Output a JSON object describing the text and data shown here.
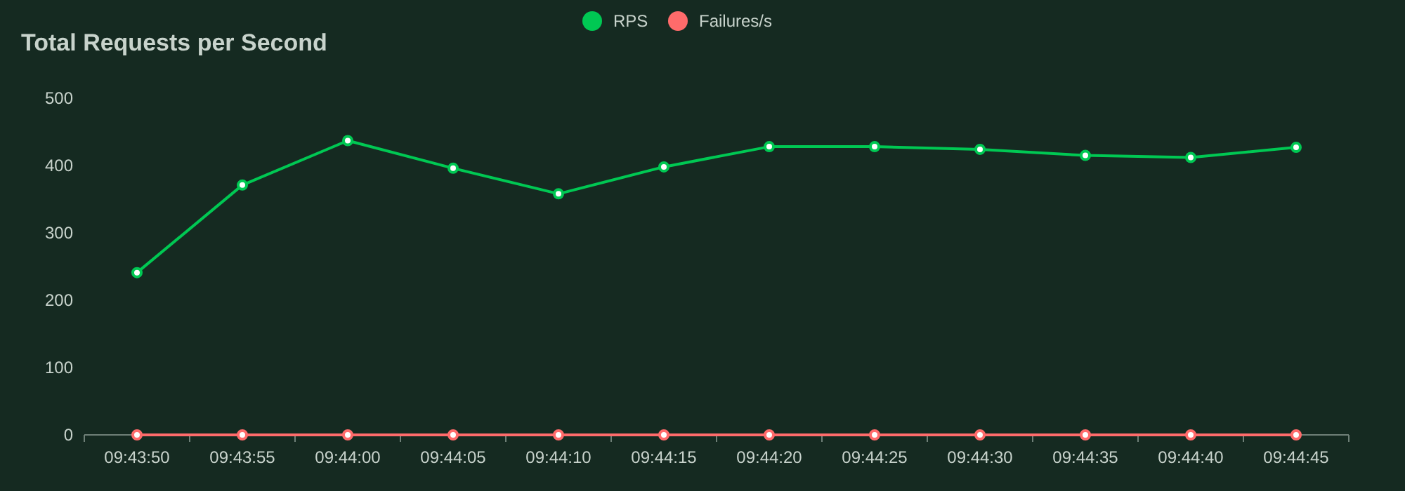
{
  "chart_data": {
    "type": "line",
    "title": "Total Requests per Second",
    "categories": [
      "09:43:50",
      "09:43:55",
      "09:44:00",
      "09:44:05",
      "09:44:10",
      "09:44:15",
      "09:44:20",
      "09:44:25",
      "09:44:30",
      "09:44:35",
      "09:44:40",
      "09:44:45"
    ],
    "series": [
      {
        "name": "RPS",
        "color": "#00c853",
        "values": [
          241,
          371,
          437,
          396,
          358,
          398,
          428,
          428,
          424,
          415,
          412,
          427
        ]
      },
      {
        "name": "Failures/s",
        "color": "#ff6b6b",
        "values": [
          0,
          0,
          0,
          0,
          0,
          0,
          0,
          0,
          0,
          0,
          0,
          0
        ]
      }
    ],
    "ylim": [
      0,
      500
    ],
    "yticks": [
      0,
      100,
      200,
      300,
      400,
      500
    ],
    "grid": false,
    "legend": "top",
    "marker": "circle",
    "line_style": "solid"
  }
}
